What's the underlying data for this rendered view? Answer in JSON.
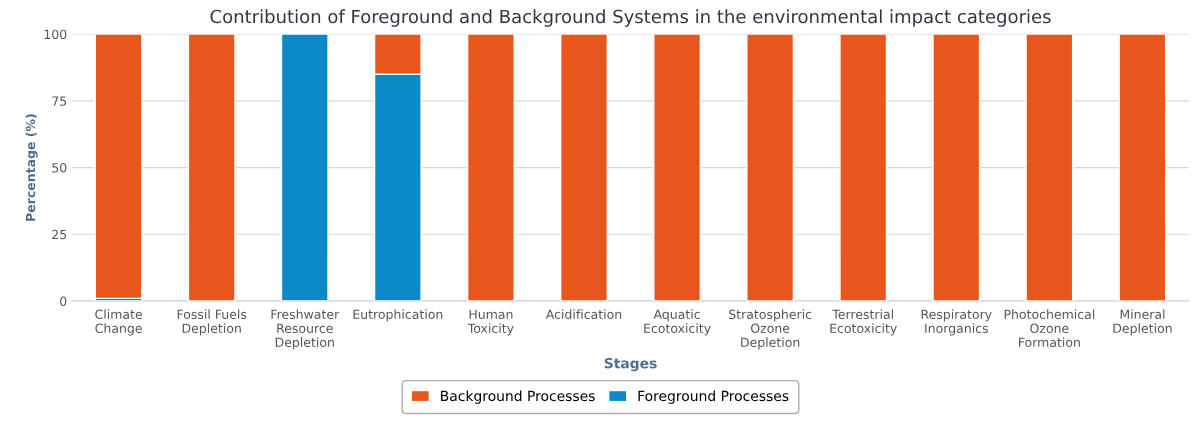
{
  "chart_data": {
    "type": "bar",
    "title": "Contribution of Foreground and Background Systems in the environmental impact categories",
    "xlabel": "Stages",
    "ylabel": "Percentage (%)",
    "categories": [
      "Climate Change",
      "Fossil Fuels Depletion",
      "Freshwater Resource Depletion",
      "Eutrophication",
      "Human Toxicity",
      "Acidification",
      "Aquatic Ecotoxicity",
      "Stratospheric Ozone Depletion",
      "Terrestrial Ecotoxicity",
      "Respiratory Inorganics",
      "Photochemical Ozone Formation",
      "Mineral Depletion"
    ],
    "stacked": true,
    "series": [
      {
        "name": "Foreground Processes",
        "color": "#0a8ac8",
        "values": [
          1,
          0,
          100,
          85,
          0,
          0,
          0,
          0,
          0,
          0,
          0,
          0
        ]
      },
      {
        "name": "Background Processes",
        "color": "#e8561e",
        "values": [
          99,
          100,
          0,
          15,
          100,
          100,
          100,
          100,
          100,
          100,
          100,
          100
        ]
      }
    ],
    "ylim": [
      0,
      100
    ],
    "yticks": [
      0,
      25,
      50,
      75,
      100
    ],
    "grid": "y",
    "legend": "bottom"
  }
}
